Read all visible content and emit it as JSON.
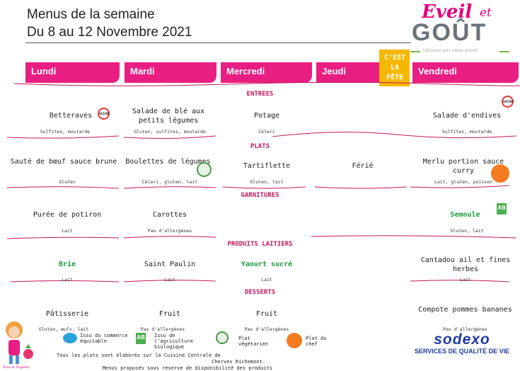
{
  "header": {
    "title": "Menus de la semaine",
    "period": "Du 8 au 12 Novembre 2021"
  },
  "logo": {
    "eveil": "Eveil",
    "et": "et",
    "gout": "GOÛT",
    "tagline": "Découvrir pour mieux grandir"
  },
  "fete_badge": {
    "line1": "C'EST",
    "line2": "LA",
    "line3": "FÊTE"
  },
  "days": [
    "Lundi",
    "Mardi",
    "Mercredi",
    "Jeudi",
    "Vendredi"
  ],
  "sections": {
    "entrees": "ENTREES",
    "plats": "PLATS",
    "garnitures": "GARNITURES",
    "laitiers": "PRODUITS LAITIERS",
    "desserts": "DESSERTS"
  },
  "entrees": [
    {
      "dish": "Betteraves",
      "allergens": "Sulfites, moutarde"
    },
    {
      "dish": "Salade de blé aux petits légumes",
      "allergens": "Gluten, sulfites, moutarde"
    },
    {
      "dish": "Potage",
      "allergens": "Céleri"
    },
    {
      "dish": "Salade d'endives",
      "allergens": "Sulfites, moutarde"
    }
  ],
  "plats": [
    {
      "dish": "Sauté de bœuf sauce brune",
      "allergens": "Gluten"
    },
    {
      "dish": "Boulettes de légumes",
      "allergens": "Céleri, gluten, lait"
    },
    {
      "dish": "Tartiflette",
      "allergens": "Gluten, lait"
    },
    {
      "dish": "Férié"
    },
    {
      "dish": "Merlu portion sauce curry",
      "allergens": "Lait, gluten, poisson"
    }
  ],
  "garnitures": [
    {
      "dish": "Purée de potiron",
      "allergens": "Lait"
    },
    {
      "dish": "Carottes",
      "allergens": "Pas d'allergènes"
    },
    {
      "dish": "Semoule",
      "allergens": "Gluten, lait"
    }
  ],
  "laitiers": [
    {
      "dish": "Brie",
      "allergens": "Lait"
    },
    {
      "dish": "Saint Paulin",
      "allergens": "Lait"
    },
    {
      "dish": "Yaourt sucré",
      "allergens": "Lait"
    },
    {
      "dish": "Cantadou ail et fines herbes",
      "allergens": "Lait"
    }
  ],
  "desserts": [
    {
      "dish": "Pâtisserie",
      "allergens": "Gluten, œufs, lait"
    },
    {
      "dish": "Fruit",
      "allergens": "Pas d'allergènes"
    },
    {
      "dish": "Fruit",
      "allergens": "Pas d'allergènes"
    },
    {
      "dish": "Compote pommes bananes",
      "allergens": "Pas d'allergènes"
    }
  ],
  "badges": {
    "saison": "SAISON",
    "bio": "AB"
  },
  "legend": {
    "commerce_equitable": "Issu du commerce équitable",
    "bio": "Issu de l'agriculture biologique",
    "vegetarien": "Plat végétarien",
    "chef": "Plat du chef"
  },
  "footer": {
    "line1": "Tous les plats sont élaborés sur la Cuisine Centrale de",
    "line2": "Cherves Richemont.",
    "line3": "Menus proposés sous réserve de disponibilité des produits"
  },
  "sodexo": {
    "brand": "sodexo",
    "subtitle": "SERVICES DE QUALITÉ DE VIE"
  },
  "mascot_label": "Noa et Vegetta",
  "colors": {
    "accent": "#e91e82",
    "green": "#1a9e3f",
    "section": "#c2185b",
    "sodexo": "#1f3b9e",
    "wave": "#c2185b"
  }
}
